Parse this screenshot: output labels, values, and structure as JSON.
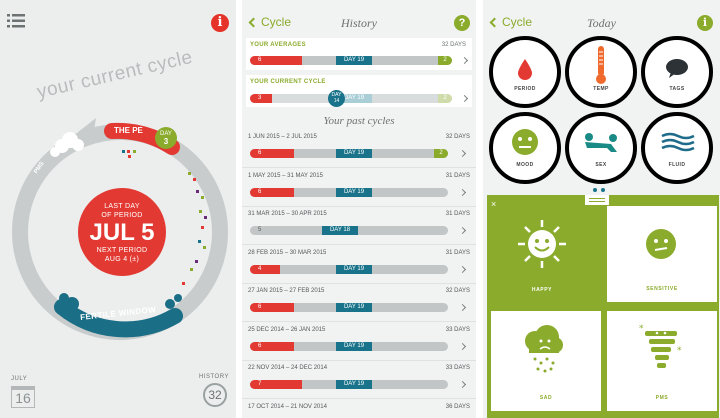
{
  "home": {
    "title": "your current cycle",
    "period_label": "THE PE",
    "day_label": "DAY",
    "day_number": "3",
    "pms_label": "PMS",
    "fertile_label": "FERTILE WINDOW",
    "center": {
      "line1": "LAST DAY",
      "line2": "OF PERIOD",
      "date": "JUL 5",
      "line3": "NEXT PERIOD",
      "line4": "AUG 4 (±)"
    },
    "calendar": {
      "month": "JULY",
      "day": "16"
    },
    "history": {
      "label": "HISTORY",
      "count": "32"
    }
  },
  "history_screen": {
    "back_label": "Cycle",
    "title": "History",
    "help": "?",
    "averages": {
      "label": "YOUR AVERAGES",
      "days": "32 DAYS",
      "period": "6",
      "day": "DAY 19",
      "fertile": "2"
    },
    "current": {
      "label": "YOUR CURRENT CYCLE",
      "period": "3",
      "day": "DAY",
      "day_num": "14",
      "dayd": "DAY 19",
      "fertile": "2"
    },
    "past_title": "Your past cycles",
    "rows": [
      {
        "dates": "1 JUN 2015 – 2 JUL 2015",
        "days": "32 DAYS",
        "period": "6",
        "day": "DAY 19",
        "fertile": "2"
      },
      {
        "dates": "1 MAY 2015 – 31 MAY 2015",
        "days": "31 DAYS",
        "period": "6",
        "day": "DAY 19",
        "fertile": ""
      },
      {
        "dates": "31 MAR 2015 – 30 APR 2015",
        "days": "31 DAYS",
        "period": "5",
        "day": "DAY 18",
        "fertile": ""
      },
      {
        "dates": "28 FEB 2015 – 30 MAR 2015",
        "days": "31 DAYS",
        "period": "4",
        "day": "DAY 19",
        "fertile": ""
      },
      {
        "dates": "27 JAN 2015 – 27 FEB 2015",
        "days": "32 DAYS",
        "period": "6",
        "day": "DAY 19",
        "fertile": ""
      },
      {
        "dates": "25 DEC 2014 – 26 JAN 2015",
        "days": "33 DAYS",
        "period": "6",
        "day": "DAY 19",
        "fertile": ""
      },
      {
        "dates": "22 NOV 2014 – 24 DEC 2014",
        "days": "33 DAYS",
        "period": "7",
        "day": "DAY 19",
        "fertile": ""
      },
      {
        "dates": "17 OCT 2014 – 21 NOV 2014",
        "days": "36 DAYS",
        "period": "",
        "day": "",
        "fertile": ""
      }
    ]
  },
  "today_screen": {
    "back_label": "Cycle",
    "title": "Today",
    "info": "i",
    "categories": [
      {
        "label": "PERIOD",
        "color": "#e23a33"
      },
      {
        "label": "TEMP",
        "color": "#ef6a2c"
      },
      {
        "label": "TAGS",
        "color": "#2c3236"
      },
      {
        "label": "MOOD",
        "color": "#8aab2b"
      },
      {
        "label": "SEX",
        "color": "#1a8a86"
      },
      {
        "label": "FLUID",
        "color": "#1f6c8a"
      }
    ],
    "moods": [
      {
        "label": "HAPPY"
      },
      {
        "label": "SENSITIVE"
      },
      {
        "label": "SAD"
      },
      {
        "label": "PMS"
      }
    ]
  },
  "colors": {
    "green": "#8aab2b",
    "red": "#e23a33",
    "teal": "#19738a",
    "grey": "#c2c6c6"
  }
}
